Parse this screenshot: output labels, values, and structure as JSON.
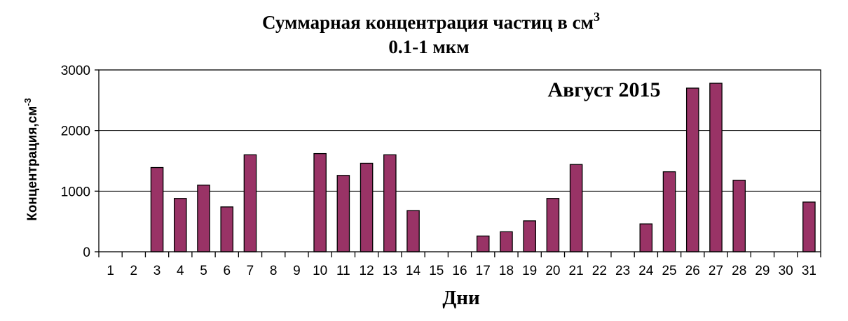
{
  "chart_data": {
    "type": "bar",
    "title_line1": "Суммарная  концентрация  частиц  в см",
    "title_sup": "3",
    "title_line2": "0.1-1 мкм",
    "annotation": "Август 2015",
    "xlabel": "Дни",
    "ylabel": "Концентрация,см",
    "ylabel_sup": "-3",
    "ylim": [
      0,
      3000
    ],
    "yticks": [
      "0",
      "1000",
      "2000",
      "3000"
    ],
    "grid": true,
    "categories": [
      "1",
      "2",
      "3",
      "4",
      "5",
      "6",
      "7",
      "8",
      "9",
      "10",
      "11",
      "12",
      "13",
      "14",
      "15",
      "16",
      "17",
      "18",
      "19",
      "20",
      "21",
      "22",
      "23",
      "24",
      "25",
      "26",
      "27",
      "28",
      "29",
      "30",
      "31"
    ],
    "values": [
      0,
      0,
      1390,
      880,
      1100,
      740,
      1600,
      0,
      0,
      1620,
      1260,
      1460,
      1600,
      680,
      0,
      0,
      260,
      330,
      510,
      880,
      1440,
      0,
      0,
      460,
      1320,
      2700,
      2780,
      1180,
      0,
      0,
      820
    ],
    "bar_color": "#993366"
  }
}
